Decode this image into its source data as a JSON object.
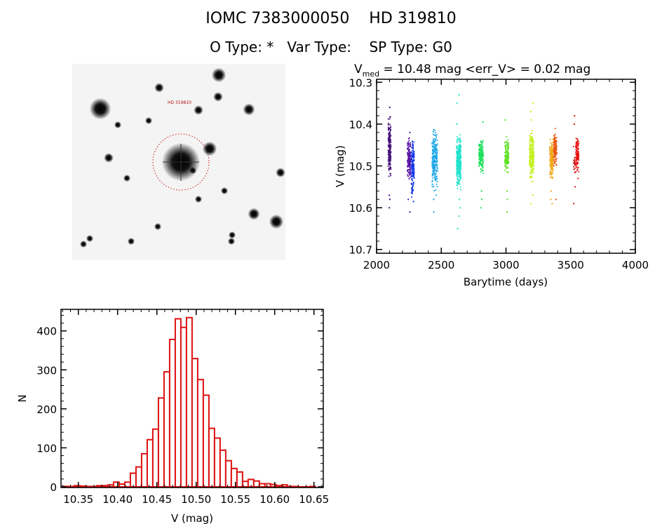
{
  "header": {
    "title": "IOMC 7383000050    HD 319810",
    "subtitle": "O Type: *   Var Type:    SP Type: G0"
  },
  "image": {
    "target_label": "HD 319810"
  },
  "chart_data": [
    {
      "type": "scatter",
      "title_main": "V",
      "title_sub": "med",
      "title_rest": " = 10.48 mag <err_V> = 0.02 mag",
      "xlabel": "Barytime (days)",
      "ylabel": "V (mag)",
      "xlim": [
        2000,
        4000
      ],
      "ylim": [
        10.7,
        10.3
      ],
      "y_inverted": true,
      "xticks": [
        "2000",
        "2500",
        "3000",
        "3500",
        "4000"
      ],
      "yticks": [
        "10.3",
        "10.4",
        "10.5",
        "10.6",
        "10.7"
      ],
      "seasons": [
        {
          "x": [
            2090,
            2110
          ],
          "core": [
            10.38,
            10.53
          ],
          "outliers": [
            10.36,
            10.57,
            10.58,
            10.6
          ],
          "color": "#45107a",
          "n": 180
        },
        {
          "x": [
            2238,
            2262
          ],
          "core": [
            10.43,
            10.54
          ],
          "outliers": [
            10.42,
            10.58,
            10.61
          ],
          "color": "#5a14a8",
          "n": 160
        },
        {
          "x": [
            2268,
            2290
          ],
          "core": [
            10.42,
            10.58
          ],
          "outliers": [
            10.585
          ],
          "color": "#1838e8",
          "n": 160
        },
        {
          "x": [
            2428,
            2470
          ],
          "core": [
            10.4,
            10.57
          ],
          "outliers": [
            10.58,
            10.61
          ],
          "color": "#1aa6e8",
          "n": 230
        },
        {
          "x": [
            2618,
            2652
          ],
          "core": [
            10.42,
            10.56
          ],
          "outliers": [
            10.33,
            10.35,
            10.4,
            10.58,
            10.6,
            10.62,
            10.65
          ],
          "color": "#22e2cc",
          "n": 320
        },
        {
          "x": [
            2790,
            2825
          ],
          "core": [
            10.43,
            10.52
          ],
          "outliers": [
            10.395,
            10.56,
            10.58,
            10.6
          ],
          "color": "#22e060",
          "n": 170
        },
        {
          "x": [
            2990,
            3020
          ],
          "core": [
            10.43,
            10.52
          ],
          "outliers": [
            10.39,
            10.56,
            10.58,
            10.61
          ],
          "color": "#5ee022",
          "n": 130
        },
        {
          "x": [
            3180,
            3215
          ],
          "core": [
            10.41,
            10.55
          ],
          "outliers": [
            10.35,
            10.37,
            10.39,
            10.57,
            10.59
          ],
          "color": "#c4f020",
          "n": 230
        },
        {
          "x": [
            3338,
            3365
          ],
          "core": [
            10.43,
            10.54
          ],
          "outliers": [
            10.56,
            10.58,
            10.59
          ],
          "color": "#f0a814",
          "n": 150
        },
        {
          "x": [
            3368,
            3392
          ],
          "core": [
            10.41,
            10.51
          ],
          "outliers": [
            10.58
          ],
          "color": "#e85a14",
          "n": 130
        },
        {
          "x": [
            3520,
            3535
          ],
          "core": [
            10.45,
            10.53
          ],
          "outliers": [
            10.38,
            10.4,
            10.55,
            10.59
          ],
          "color": "#c81818",
          "n": 20
        },
        {
          "x": [
            3540,
            3562
          ],
          "core": [
            10.42,
            10.52
          ],
          "outliers": [
            10.53
          ],
          "color": "#e81010",
          "n": 110
        }
      ]
    },
    {
      "type": "bar",
      "subtype": "histogram",
      "xlabel": "V (mag)",
      "ylabel": "N",
      "xlim": [
        10.328,
        10.662
      ],
      "ylim": [
        -3,
        455
      ],
      "xticks": [
        "10.35",
        "10.40",
        "10.45",
        "10.50",
        "10.55",
        "10.60",
        "10.65"
      ],
      "yticks": [
        "0",
        "100",
        "200",
        "300",
        "400"
      ],
      "bin_start": 10.3306,
      "bin_width": 0.00714,
      "values": [
        1,
        1,
        3,
        2,
        1,
        1,
        3,
        3,
        5,
        12,
        7,
        12,
        35,
        51,
        85,
        121,
        148,
        228,
        295,
        378,
        431,
        409,
        434,
        329,
        275,
        235,
        150,
        125,
        94,
        67,
        47,
        38,
        14,
        19,
        15,
        8,
        8,
        6,
        3,
        5,
        1,
        1,
        0,
        0,
        1
      ],
      "color": "#dd1111"
    }
  ]
}
